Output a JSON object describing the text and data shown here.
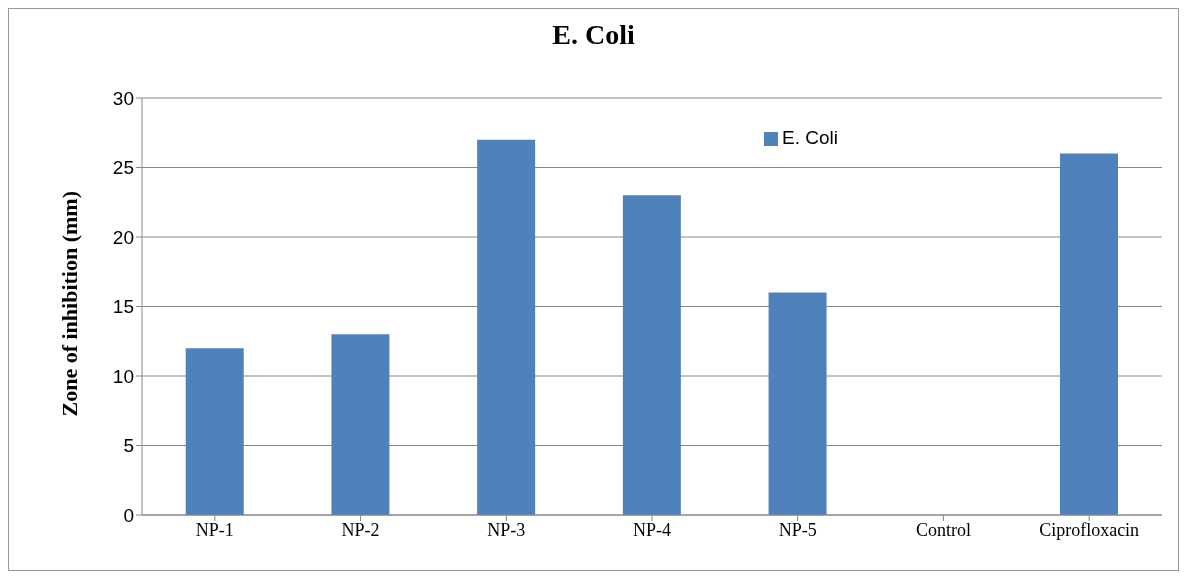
{
  "chart_data": {
    "type": "bar",
    "title": "E. Coli",
    "ylabel": "Zone of inhibition (mm)",
    "categories": [
      "NP-1",
      "NP-2",
      "NP-3",
      "NP-4",
      "NP-5",
      "Control",
      "Ciprofloxacin"
    ],
    "series": [
      {
        "name": "E. Coli",
        "color": "#4f81bd",
        "values": [
          12,
          13,
          27,
          23,
          16,
          0,
          26
        ]
      }
    ],
    "ylim": [
      0,
      30
    ],
    "yticks": [
      0,
      5,
      10,
      15,
      20,
      25,
      30
    ],
    "grid": "y",
    "legend": "top right"
  }
}
